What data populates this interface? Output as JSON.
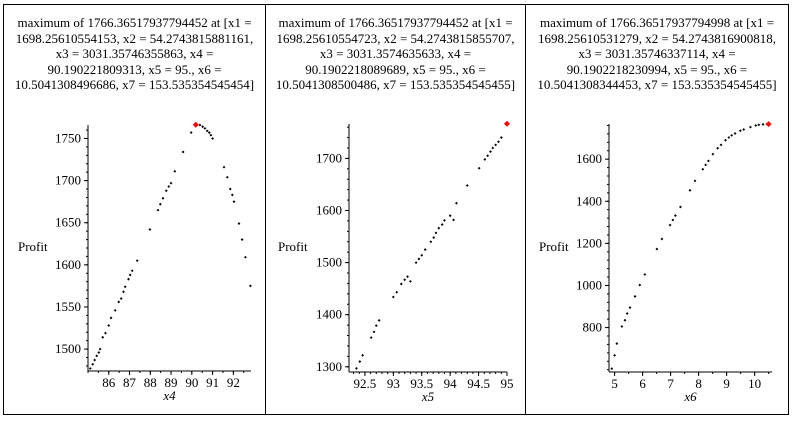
{
  "chart_data": [
    {
      "type": "scatter",
      "title": "maximum of 1766.36517937794452 at [x1 = 1698.25610554153, x2 = 54.2743815881161, x3 = 3031.35746355863, x4 = 90.190221809313, x5 = 95., x6 = 10.5041308496686, x7 = 153.535354545454]",
      "xlabel": "x4",
      "ylabel": "Profit",
      "xlim": [
        85.0,
        92.85
      ],
      "ylim": [
        1474,
        1766
      ],
      "xticks": [
        86,
        87,
        88,
        89,
        90,
        91,
        92
      ],
      "yticks": [
        1500,
        1550,
        1600,
        1650,
        1700,
        1750
      ],
      "xminor": 0.5,
      "yminor": 10,
      "highlight": {
        "x": 90.19,
        "y": 1766.37,
        "color": "#ff0000"
      },
      "x": [
        85.11,
        85.23,
        85.32,
        85.42,
        85.52,
        85.58,
        85.71,
        85.84,
        86.0,
        86.11,
        86.31,
        86.48,
        86.6,
        86.71,
        86.79,
        86.95,
        87.03,
        87.13,
        87.37,
        87.98,
        88.37,
        88.48,
        88.61,
        88.77,
        88.89,
        89.0,
        89.18,
        89.58,
        89.97,
        90.39,
        90.52,
        90.63,
        90.74,
        90.84,
        90.92,
        91.0,
        91.55,
        91.71,
        91.85,
        91.95,
        92.03,
        92.27,
        92.42,
        92.58,
        92.82
      ],
      "y": [
        1477,
        1482,
        1487,
        1492,
        1496,
        1500,
        1514,
        1519,
        1528,
        1537,
        1546,
        1556,
        1560,
        1568,
        1574,
        1583,
        1588,
        1593,
        1605,
        1642,
        1665,
        1672,
        1679,
        1688,
        1693,
        1697,
        1711,
        1734,
        1757,
        1766,
        1764,
        1762,
        1759,
        1757,
        1754,
        1750,
        1716,
        1704,
        1690,
        1683,
        1675,
        1649,
        1630,
        1609,
        1575
      ]
    },
    {
      "type": "scatter",
      "title": "maximum of 1766.36517937794452 at [x1 = 1698.25610554723, x2 = 54.2743815855707, x3 = 3031.3574635633, x4 = 90.1902218089689, x5 = 95., x6 = 10.5041308500486, x7 = 153.535354545455]",
      "xlabel": "x5",
      "ylabel": "Profit",
      "xlim": [
        92.22,
        95.0
      ],
      "ylim": [
        1290,
        1766
      ],
      "xticks": [
        92.5,
        93,
        93.5,
        94,
        94.5,
        95
      ],
      "yticks": [
        1300,
        1400,
        1500,
        1600,
        1700
      ],
      "xminor": 0.1,
      "yminor": 20,
      "highlight": {
        "x": 95.0,
        "y": 1766.37,
        "color": "#ff0000"
      },
      "x": [
        92.35,
        92.41,
        92.46,
        92.61,
        92.66,
        92.7,
        92.75,
        93.0,
        93.06,
        93.14,
        93.2,
        93.25,
        93.3,
        93.4,
        93.45,
        93.5,
        93.56,
        93.66,
        93.71,
        93.75,
        93.8,
        93.86,
        93.9,
        94.0,
        94.06,
        94.11,
        94.3,
        94.51,
        94.61,
        94.66,
        94.71,
        94.75,
        94.8,
        94.85,
        94.9
      ],
      "y": [
        1297,
        1310,
        1322,
        1356,
        1367,
        1379,
        1389,
        1434,
        1443,
        1459,
        1467,
        1473,
        1464,
        1500,
        1507,
        1514,
        1525,
        1540,
        1548,
        1557,
        1566,
        1573,
        1581,
        1590,
        1582,
        1614,
        1648,
        1681,
        1698,
        1705,
        1713,
        1720,
        1726,
        1732,
        1740
      ]
    },
    {
      "type": "scatter",
      "title": "maximum of 1766.36517937794998 at [x1 = 1698.25610531279, x2 = 54.2743816900818, x3 = 3031.35746337114, x4 = 90.1902218230994, x5 = 95., x6 = 10.5041308344453, x7 = 153.535354545455]",
      "xlabel": "x6",
      "ylabel": "Profit",
      "xlim": [
        4.8,
        10.62
      ],
      "ylim": [
        589,
        1767
      ],
      "xticks": [
        5,
        6,
        7,
        8,
        9,
        10
      ],
      "yticks": [
        800,
        1000,
        1200,
        1400,
        1600
      ],
      "xminor": 0.5,
      "yminor": 40,
      "highlight": {
        "x": 10.5,
        "y": 1766.37,
        "color": "#ff0000"
      },
      "x": [
        4.9,
        5.0,
        5.08,
        5.26,
        5.37,
        5.45,
        5.55,
        5.73,
        5.9,
        6.08,
        6.51,
        6.69,
        6.98,
        7.08,
        7.17,
        7.35,
        7.69,
        7.87,
        8.15,
        8.25,
        8.35,
        8.51,
        8.68,
        8.8,
        8.96,
        9.08,
        9.18,
        9.3,
        9.49,
        9.61,
        9.85,
        10.04,
        10.15,
        10.3,
        10.44
      ],
      "y": [
        605,
        668,
        724,
        805,
        835,
        867,
        895,
        948,
        1002,
        1052,
        1173,
        1221,
        1287,
        1311,
        1332,
        1373,
        1452,
        1497,
        1552,
        1573,
        1592,
        1624,
        1652,
        1668,
        1690,
        1703,
        1713,
        1722,
        1735,
        1741,
        1752,
        1760,
        1763,
        1765,
        1767
      ]
    }
  ]
}
